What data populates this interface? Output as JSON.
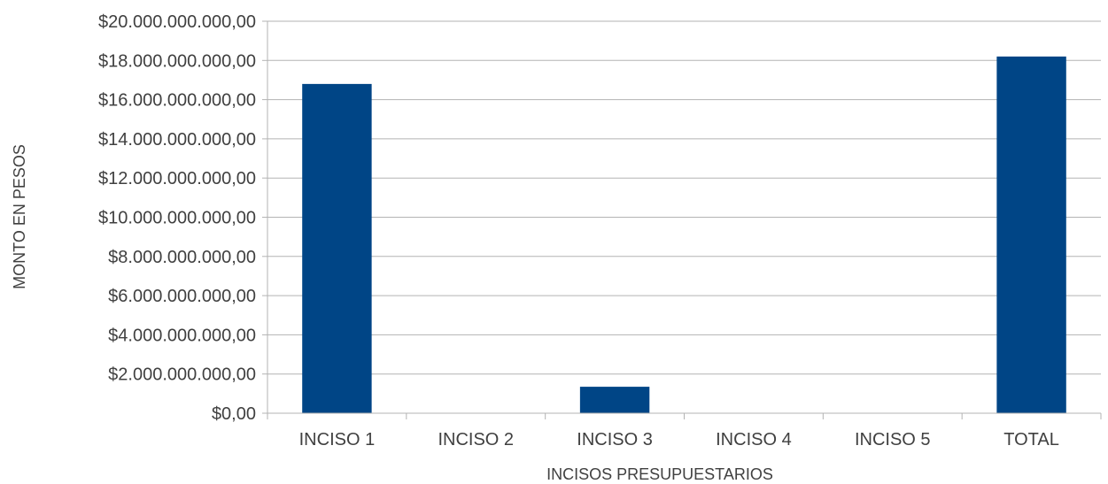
{
  "chart_data": {
    "type": "bar",
    "title": "",
    "xlabel": "INCISOS PRESUPUESTARIOS",
    "ylabel": "MONTO EN PESOS",
    "categories": [
      "INCISO 1",
      "INCISO 2",
      "INCISO 3",
      "INCISO 4",
      "INCISO 5",
      "TOTAL"
    ],
    "values": [
      16800000000,
      0,
      1350000000,
      0,
      0,
      18200000000
    ],
    "ylim": [
      0,
      20000000000
    ],
    "yticks": [
      0,
      2000000000,
      4000000000,
      6000000000,
      8000000000,
      10000000000,
      12000000000,
      14000000000,
      16000000000,
      18000000000,
      20000000000
    ],
    "ytick_labels": [
      "$0,00",
      "$2.000.000.000,00",
      "$4.000.000.000,00",
      "$6.000.000.000,00",
      "$8.000.000.000,00",
      "$10.000.000.000,00",
      "$12.000.000.000,00",
      "$14.000.000.000,00",
      "$16.000.000.000,00",
      "$18.000.000.000,00",
      "$20.000.000.000,00"
    ],
    "grid": true,
    "legend": "none",
    "colors": {
      "bar": "#004586",
      "grid": "#b3b3b3",
      "axis": "#b3b3b3",
      "text": "#404040"
    }
  }
}
